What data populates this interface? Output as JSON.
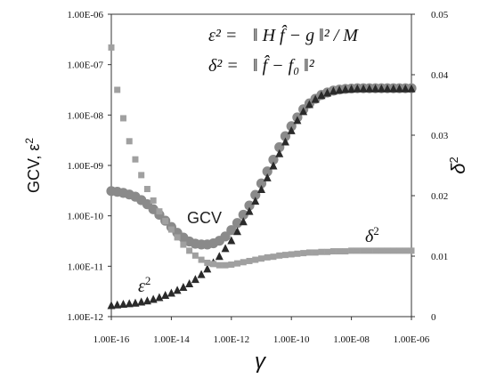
{
  "chart_data": {
    "type": "scatter",
    "title": "",
    "xlabel": "γ",
    "ylabel_left": "GCV, ε",
    "ylabel_left_sup": "2",
    "ylabel_right": "δ",
    "ylabel_right_sup": "2",
    "x_scale": "log",
    "y_left_scale": "log",
    "xlim": [
      1e-16,
      1e-06
    ],
    "ylim_left": [
      1e-12,
      1e-06
    ],
    "ylim_right": [
      0,
      0.05
    ],
    "x_ticks": [
      "1.00E-16",
      "1.00E-14",
      "1.00E-12",
      "1.00E-10",
      "1.00E-08",
      "1.00E-06"
    ],
    "y_left_ticks": [
      "1.00E-06",
      "1.00E-07",
      "1.00E-08",
      "1.00E-09",
      "1.00E-10",
      "1.00E-11",
      "1.00E-12"
    ],
    "y_right_ticks": [
      "0.05",
      "0.04",
      "0.03",
      "0.02",
      "0.01",
      "0"
    ],
    "annotations": {
      "eq1_lhs": "ε² =",
      "eq1_rhs": "‖ H f̂ − g ‖² / M",
      "eq2_lhs": "δ² =",
      "eq2_rhs": "‖ f̂ − f₀ ‖²"
    },
    "series_labels": {
      "gcv": "GCV",
      "eps": "ε",
      "eps_sup": "2",
      "delta": "δ",
      "delta_sup": "2"
    },
    "colors": {
      "gcv": "#8a8a8a",
      "eps": "#2a2a2a",
      "delta": "#a0a0a0"
    },
    "series": [
      {
        "name": "GCV",
        "marker": "circle",
        "axis": "left",
        "x": [
          1e-16,
          1.58e-16,
          2.51e-16,
          3.98e-16,
          6.31e-16,
          1e-15,
          1.58e-15,
          2.51e-15,
          3.98e-15,
          6.31e-15,
          1e-14,
          1.58e-14,
          2.51e-14,
          3.98e-14,
          6.31e-14,
          1e-13,
          1.58e-13,
          2.51e-13,
          3.98e-13,
          6.31e-13,
          1e-12,
          1.58e-12,
          2.51e-12,
          3.98e-12,
          6.31e-12,
          1e-11,
          1.58e-11,
          2.51e-11,
          3.98e-11,
          6.31e-11,
          1e-10,
          1.58e-10,
          2.51e-10,
          3.98e-10,
          6.31e-10,
          1e-09,
          1.58e-09,
          2.51e-09,
          3.98e-09,
          6.31e-09,
          1e-08,
          1.58e-08,
          2.51e-08,
          3.98e-08,
          6.31e-08,
          1e-07,
          1.58e-07,
          2.51e-07,
          3.98e-07,
          6.31e-07,
          1e-06
        ],
        "y": [
          3.1e-10,
          3e-10,
          2.85e-10,
          2.65e-10,
          2.4e-10,
          2.05e-10,
          1.7e-10,
          1.35e-10,
          1.05e-10,
          8e-11,
          6e-11,
          4.6e-11,
          3.7e-11,
          3.1e-11,
          2.8e-11,
          2.7e-11,
          2.7e-11,
          2.85e-11,
          3.2e-11,
          3.9e-11,
          5.2e-11,
          7.2e-11,
          1.05e-10,
          1.6e-10,
          2.6e-10,
          4.4e-10,
          7.6e-10,
          1.3e-09,
          2.3e-09,
          3.8e-09,
          6e-09,
          9e-09,
          1.3e-08,
          1.7e-08,
          2.1e-08,
          2.5e-08,
          2.8e-08,
          3.05e-08,
          3.2e-08,
          3.3e-08,
          3.35e-08,
          3.4e-08,
          3.4e-08,
          3.4e-08,
          3.4e-08,
          3.4e-08,
          3.4e-08,
          3.4e-08,
          3.4e-08,
          3.4e-08,
          3.4e-08
        ]
      },
      {
        "name": "ε²",
        "marker": "triangle",
        "axis": "left",
        "x": [
          1e-16,
          1.58e-16,
          2.51e-16,
          3.98e-16,
          6.31e-16,
          1e-15,
          1.58e-15,
          2.51e-15,
          3.98e-15,
          6.31e-15,
          1e-14,
          1.58e-14,
          2.51e-14,
          3.98e-14,
          6.31e-14,
          1e-13,
          1.58e-13,
          2.51e-13,
          3.98e-13,
          6.31e-13,
          1e-12,
          1.58e-12,
          2.51e-12,
          3.98e-12,
          6.31e-12,
          1e-11,
          1.58e-11,
          2.51e-11,
          3.98e-11,
          6.31e-11,
          1e-10,
          1.58e-10,
          2.51e-10,
          3.98e-10,
          6.31e-10,
          1e-09,
          1.58e-09,
          2.51e-09,
          3.98e-09,
          6.31e-09,
          1e-08,
          1.58e-08,
          2.51e-08,
          3.98e-08,
          6.31e-08,
          1e-07,
          1.58e-07,
          2.51e-07,
          3.98e-07,
          6.31e-07,
          1e-06
        ],
        "y": [
          1.7e-12,
          1.75e-12,
          1.8e-12,
          1.85e-12,
          1.9e-12,
          2e-12,
          2.1e-12,
          2.25e-12,
          2.45e-12,
          2.7e-12,
          3e-12,
          3.4e-12,
          3.9e-12,
          4.6e-12,
          5.6e-12,
          7e-12,
          9e-12,
          1.2e-11,
          1.6e-11,
          2.3e-11,
          3.3e-11,
          5e-11,
          7.8e-11,
          1.25e-10,
          2e-10,
          3.4e-10,
          5.8e-10,
          1e-09,
          1.75e-09,
          3e-09,
          5e-09,
          8e-09,
          1.2e-08,
          1.65e-08,
          2.1e-08,
          2.5e-08,
          2.8e-08,
          3.05e-08,
          3.2e-08,
          3.3e-08,
          3.35e-08,
          3.4e-08,
          3.4e-08,
          3.4e-08,
          3.4e-08,
          3.4e-08,
          3.4e-08,
          3.4e-08,
          3.4e-08,
          3.4e-08,
          3.4e-08
        ]
      },
      {
        "name": "δ²",
        "marker": "square",
        "axis": "right",
        "x": [
          1e-16,
          1.58e-16,
          2.51e-16,
          3.98e-16,
          6.31e-16,
          1e-15,
          1.58e-15,
          2.51e-15,
          3.98e-15,
          6.31e-15,
          1e-14,
          1.58e-14,
          2.51e-14,
          3.98e-14,
          6.31e-14,
          1e-13,
          1.58e-13,
          2.51e-13,
          3.98e-13,
          6.31e-13,
          1e-12,
          1.58e-12,
          2.51e-12,
          3.98e-12,
          6.31e-12,
          1e-11,
          1.58e-11,
          2.51e-11,
          3.98e-11,
          6.31e-11,
          1e-10,
          1.58e-10,
          2.51e-10,
          3.98e-10,
          6.31e-10,
          1e-09,
          1.58e-09,
          2.51e-09,
          3.98e-09,
          6.31e-09,
          1e-08,
          1.58e-08,
          2.51e-08,
          3.98e-08,
          6.31e-08,
          1e-07,
          1.58e-07,
          2.51e-07,
          3.98e-07,
          6.31e-07,
          1e-06
        ],
        "y": [
          0.0445,
          0.0375,
          0.0328,
          0.029,
          0.026,
          0.0234,
          0.0211,
          0.0192,
          0.0174,
          0.0158,
          0.0144,
          0.0131,
          0.0119,
          0.0109,
          0.0101,
          0.0094,
          0.0089,
          0.0087,
          0.0085,
          0.0085,
          0.0086,
          0.0088,
          0.009,
          0.0092,
          0.0094,
          0.0096,
          0.0098,
          0.0099,
          0.0101,
          0.0102,
          0.0103,
          0.0104,
          0.0105,
          0.0106,
          0.0106,
          0.0107,
          0.0107,
          0.0108,
          0.0108,
          0.0108,
          0.0109,
          0.0109,
          0.0109,
          0.0109,
          0.0109,
          0.0109,
          0.0109,
          0.0109,
          0.0109,
          0.0109,
          0.0109
        ]
      }
    ]
  }
}
